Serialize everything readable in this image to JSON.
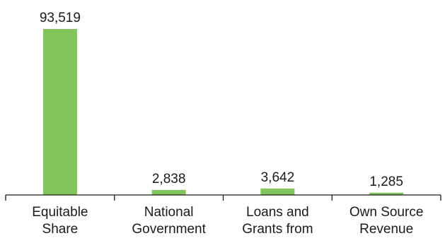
{
  "chart_data": {
    "type": "bar",
    "title": "",
    "xlabel": "",
    "ylabel": "",
    "categories": [
      [
        "Equitable",
        "Share"
      ],
      [
        "National",
        "Government"
      ],
      [
        "Loans and",
        "Grants from"
      ],
      [
        "Own Source",
        "Revenue"
      ]
    ],
    "values": [
      93519,
      2838,
      3642,
      1285
    ],
    "data_labels": [
      "93,519",
      "2,838",
      "3,642",
      "1,285"
    ],
    "ylim": [
      0,
      93519
    ],
    "y_axis_visible": false,
    "grid": false,
    "legend": "none",
    "bar_color": "#84c45c",
    "axis_color": "#1a1a1a"
  }
}
